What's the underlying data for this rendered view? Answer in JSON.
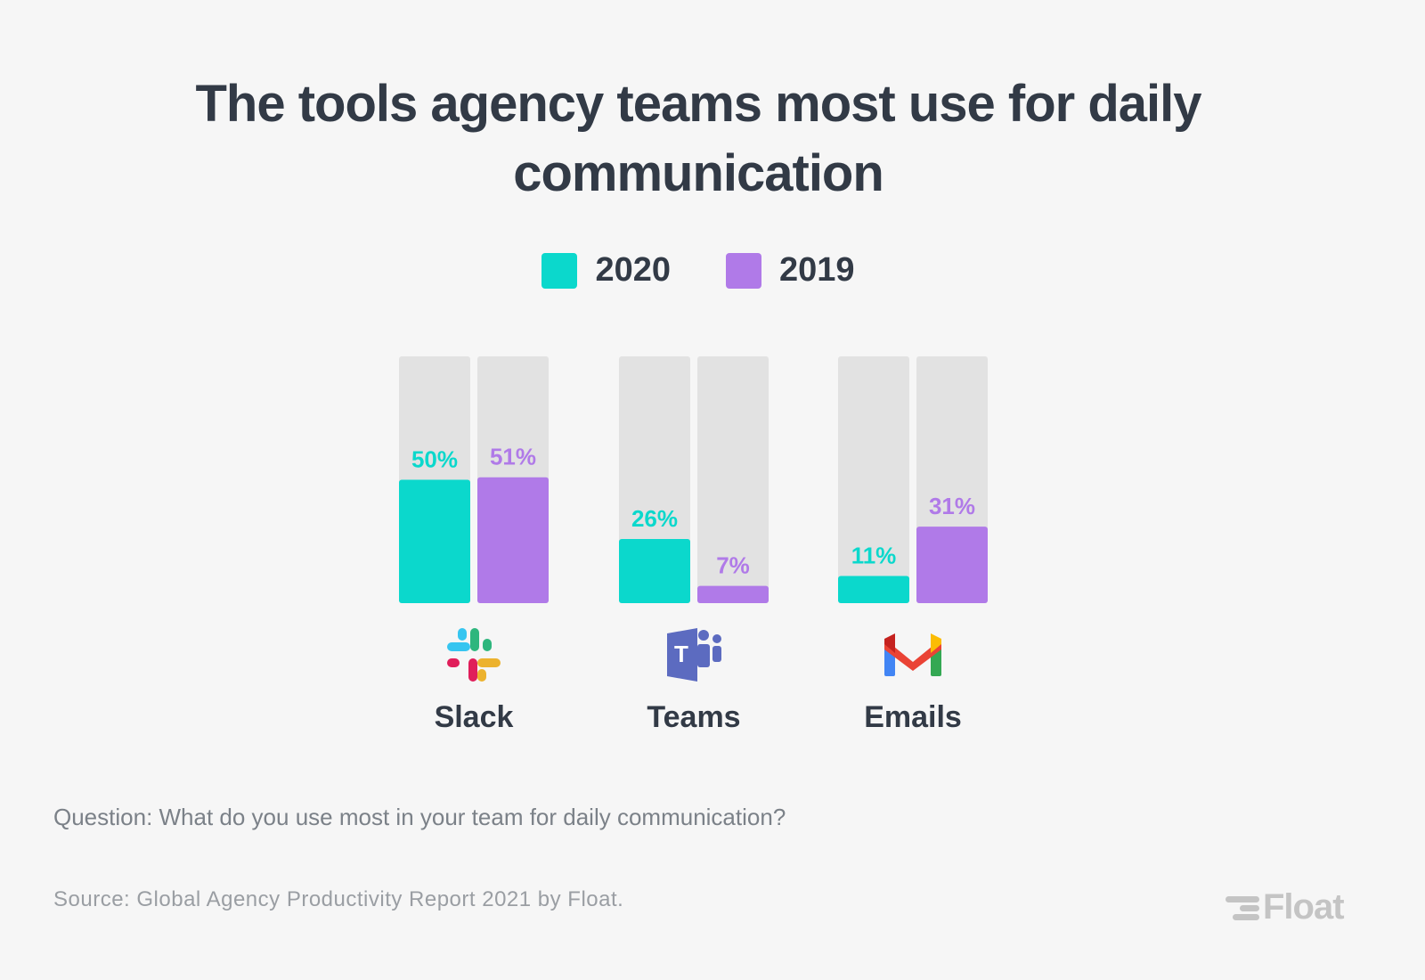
{
  "chart_data": {
    "type": "bar",
    "title": "The tools agency teams most use for daily communication",
    "title_lines": [
      "The tools agency teams most use for daily",
      "communication"
    ],
    "categories": [
      "Slack",
      "Teams",
      "Emails"
    ],
    "category_icons": [
      "slack-icon",
      "teams-icon",
      "gmail-icon"
    ],
    "series": [
      {
        "name": "2020",
        "color": "#0bd8cc",
        "values": [
          50,
          26,
          11
        ]
      },
      {
        "name": "2019",
        "color": "#b07ae8",
        "values": [
          51,
          7,
          31
        ]
      }
    ],
    "value_format": "{v}%",
    "ylim": [
      0,
      100
    ],
    "track_color": "#e2e2e2",
    "legend_position": "top-center",
    "grid": false,
    "xlabel": "",
    "ylabel": ""
  },
  "footer": {
    "question": "Question: What do you use most in your team for daily communication?",
    "source": "Source: Global Agency Productivity Report 2021 by Float.",
    "logo": "Float"
  }
}
